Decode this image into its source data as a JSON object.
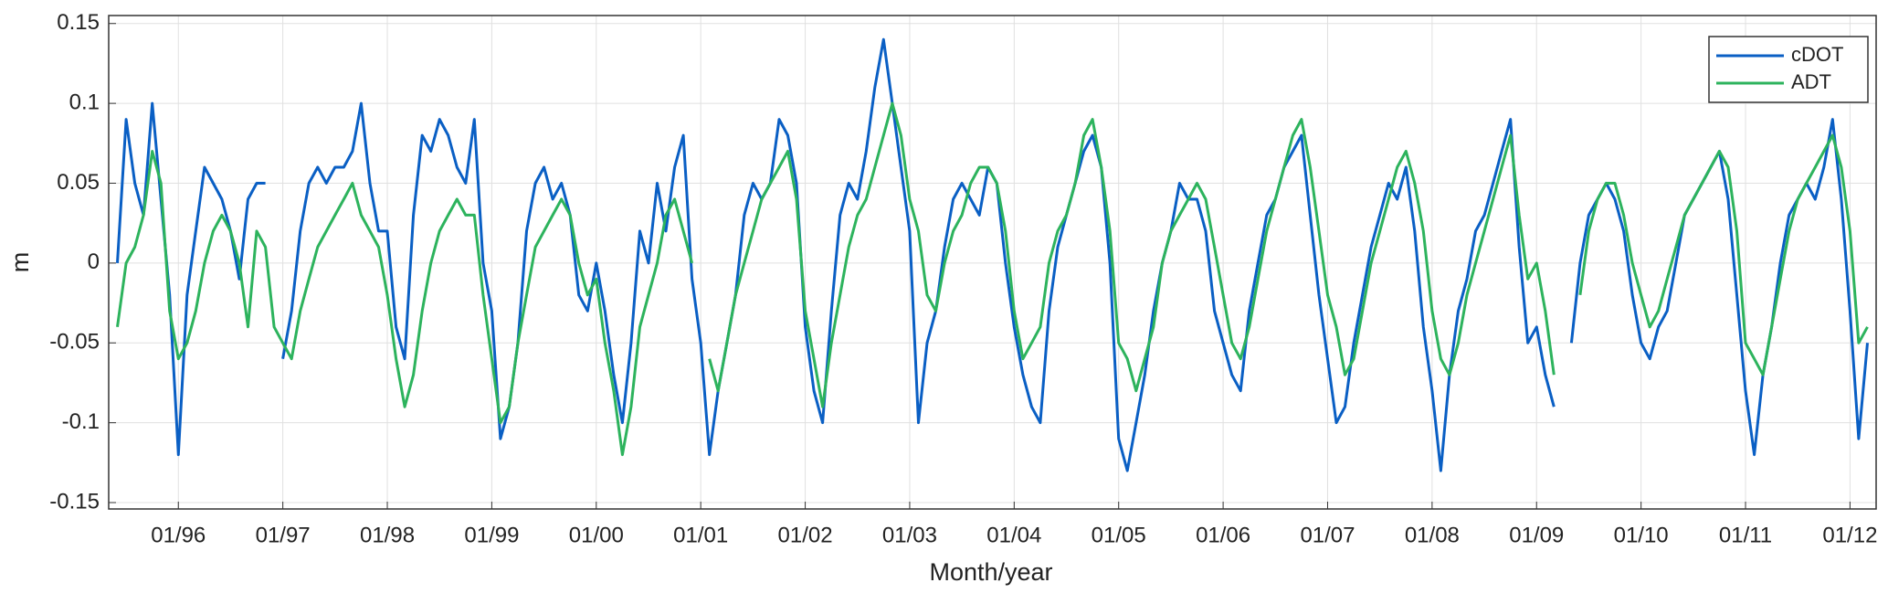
{
  "chart_data": {
    "type": "line",
    "xlabel": "Month/year",
    "ylabel": "m",
    "x": [
      "06/95",
      "07/95",
      "08/95",
      "09/95",
      "10/95",
      "11/95",
      "12/95",
      "01/96",
      "02/96",
      "03/96",
      "04/96",
      "05/96",
      "06/96",
      "07/96",
      "08/96",
      "09/96",
      "10/96",
      "11/96",
      "12/96",
      "01/97",
      "02/97",
      "03/97",
      "04/97",
      "05/97",
      "06/97",
      "07/97",
      "08/97",
      "09/97",
      "10/97",
      "11/97",
      "12/97",
      "01/98",
      "02/98",
      "03/98",
      "04/98",
      "05/98",
      "06/98",
      "07/98",
      "08/98",
      "09/98",
      "10/98",
      "11/98",
      "12/98",
      "01/99",
      "02/99",
      "03/99",
      "04/99",
      "05/99",
      "06/99",
      "07/99",
      "08/99",
      "09/99",
      "10/99",
      "11/99",
      "12/99",
      "01/00",
      "02/00",
      "03/00",
      "04/00",
      "05/00",
      "06/00",
      "07/00",
      "08/00",
      "09/00",
      "10/00",
      "11/00",
      "12/00",
      "01/01",
      "02/01",
      "03/01",
      "04/01",
      "05/01",
      "06/01",
      "07/01",
      "08/01",
      "09/01",
      "10/01",
      "11/01",
      "12/01",
      "01/02",
      "02/02",
      "03/02",
      "04/02",
      "05/02",
      "06/02",
      "07/02",
      "08/02",
      "09/02",
      "10/02",
      "11/02",
      "12/02",
      "01/03",
      "02/03",
      "03/03",
      "04/03",
      "05/03",
      "06/03",
      "07/03",
      "08/03",
      "09/03",
      "10/03",
      "11/03",
      "12/03",
      "01/04",
      "02/04",
      "03/04",
      "04/04",
      "05/04",
      "06/04",
      "07/04",
      "08/04",
      "09/04",
      "10/04",
      "11/04",
      "12/04",
      "01/05",
      "02/05",
      "03/05",
      "04/05",
      "05/05",
      "06/05",
      "07/05",
      "08/05",
      "09/05",
      "10/05",
      "11/05",
      "12/05",
      "01/06",
      "02/06",
      "03/06",
      "04/06",
      "05/06",
      "06/06",
      "07/06",
      "08/06",
      "09/06",
      "10/06",
      "11/06",
      "12/06",
      "01/07",
      "02/07",
      "03/07",
      "04/07",
      "05/07",
      "06/07",
      "07/07",
      "08/07",
      "09/07",
      "10/07",
      "11/07",
      "12/07",
      "01/08",
      "02/08",
      "03/08",
      "04/08",
      "05/08",
      "06/08",
      "07/08",
      "08/08",
      "09/08",
      "10/08",
      "11/08",
      "12/08",
      "01/09",
      "02/09",
      "03/09",
      "04/09",
      "05/09",
      "06/09",
      "07/09",
      "08/09",
      "09/09",
      "10/09",
      "11/09",
      "12/09",
      "01/10",
      "02/10",
      "03/10",
      "04/10",
      "05/10",
      "06/10",
      "07/10",
      "08/10",
      "09/10",
      "10/10",
      "11/10",
      "12/10",
      "01/11",
      "02/11",
      "03/11",
      "04/11",
      "05/11",
      "06/11",
      "07/11",
      "08/11",
      "09/11",
      "10/11",
      "11/11",
      "12/11",
      "01/12",
      "02/12",
      "03/12"
    ],
    "series": [
      {
        "name": "cDOT",
        "color": "#0a5fc4",
        "values": [
          0.0,
          0.09,
          0.05,
          0.03,
          0.1,
          0.04,
          -0.02,
          -0.12,
          -0.02,
          0.02,
          0.06,
          0.05,
          0.04,
          0.02,
          -0.01,
          0.04,
          0.05,
          0.05,
          null,
          -0.06,
          -0.03,
          0.02,
          0.05,
          0.06,
          0.05,
          0.06,
          0.06,
          0.07,
          0.1,
          0.05,
          0.02,
          0.02,
          -0.04,
          -0.06,
          0.03,
          0.08,
          0.07,
          0.09,
          0.08,
          0.06,
          0.05,
          0.09,
          0.0,
          -0.03,
          -0.11,
          -0.09,
          -0.05,
          0.02,
          0.05,
          0.06,
          0.04,
          0.05,
          0.03,
          -0.02,
          -0.03,
          0.0,
          -0.03,
          -0.07,
          -0.1,
          -0.05,
          0.02,
          0.0,
          0.05,
          0.02,
          0.06,
          0.08,
          -0.01,
          -0.05,
          -0.12,
          -0.08,
          -0.05,
          -0.02,
          0.03,
          0.05,
          0.04,
          0.05,
          0.09,
          0.08,
          0.05,
          -0.04,
          -0.08,
          -0.1,
          -0.03,
          0.03,
          0.05,
          0.04,
          0.07,
          0.11,
          0.14,
          0.1,
          0.06,
          0.02,
          -0.1,
          -0.05,
          -0.03,
          0.01,
          0.04,
          0.05,
          0.04,
          0.03,
          0.06,
          0.05,
          0.0,
          -0.04,
          -0.07,
          -0.09,
          -0.1,
          -0.03,
          0.01,
          0.03,
          0.05,
          0.07,
          0.08,
          0.06,
          0.0,
          -0.11,
          -0.13,
          -0.1,
          -0.07,
          -0.03,
          0.0,
          0.02,
          0.05,
          0.04,
          0.04,
          0.02,
          -0.03,
          -0.05,
          -0.07,
          -0.08,
          -0.03,
          0.0,
          0.03,
          0.04,
          0.06,
          0.07,
          0.08,
          0.03,
          -0.02,
          -0.06,
          -0.1,
          -0.09,
          -0.05,
          -0.02,
          0.01,
          0.03,
          0.05,
          0.04,
          0.06,
          0.02,
          -0.04,
          -0.08,
          -0.13,
          -0.07,
          -0.03,
          -0.01,
          0.02,
          0.03,
          0.05,
          0.07,
          0.09,
          0.01,
          -0.05,
          -0.04,
          -0.07,
          -0.09,
          null,
          -0.05,
          0.0,
          0.03,
          0.04,
          0.05,
          0.04,
          0.02,
          -0.02,
          -0.05,
          -0.06,
          -0.04,
          -0.03,
          0.0,
          0.03,
          0.04,
          0.05,
          0.06,
          0.07,
          0.04,
          -0.02,
          -0.08,
          -0.12,
          -0.07,
          -0.04,
          0.0,
          0.03,
          0.04,
          0.05,
          0.04,
          0.06,
          0.09,
          0.04,
          -0.03,
          -0.11,
          -0.05
        ]
      },
      {
        "name": "ADT",
        "color": "#2db35d",
        "values": [
          -0.04,
          0.0,
          0.01,
          0.03,
          0.07,
          0.05,
          -0.03,
          -0.06,
          -0.05,
          -0.03,
          0.0,
          0.02,
          0.03,
          0.02,
          0.0,
          -0.04,
          0.02,
          0.01,
          -0.04,
          -0.05,
          -0.06,
          -0.03,
          -0.01,
          0.01,
          0.02,
          0.03,
          0.04,
          0.05,
          0.03,
          0.02,
          0.01,
          -0.02,
          -0.06,
          -0.09,
          -0.07,
          -0.03,
          0.0,
          0.02,
          0.03,
          0.04,
          0.03,
          0.03,
          -0.02,
          -0.06,
          -0.1,
          -0.09,
          -0.05,
          -0.02,
          0.01,
          0.02,
          0.03,
          0.04,
          0.03,
          0.0,
          -0.02,
          -0.01,
          -0.05,
          -0.08,
          -0.12,
          -0.09,
          -0.04,
          -0.02,
          0.0,
          0.03,
          0.04,
          0.02,
          0.0,
          null,
          -0.06,
          -0.08,
          -0.05,
          -0.02,
          0.0,
          0.02,
          0.04,
          0.05,
          0.06,
          0.07,
          0.04,
          -0.03,
          -0.06,
          -0.09,
          -0.05,
          -0.02,
          0.01,
          0.03,
          0.04,
          0.06,
          0.08,
          0.1,
          0.08,
          0.04,
          0.02,
          -0.02,
          -0.03,
          0.0,
          0.02,
          0.03,
          0.05,
          0.06,
          0.06,
          0.05,
          0.02,
          -0.03,
          -0.06,
          -0.05,
          -0.04,
          0.0,
          0.02,
          0.03,
          0.05,
          0.08,
          0.09,
          0.06,
          0.02,
          -0.05,
          -0.06,
          -0.08,
          -0.06,
          -0.04,
          0.0,
          0.02,
          0.03,
          0.04,
          0.05,
          0.04,
          0.01,
          -0.02,
          -0.05,
          -0.06,
          -0.04,
          -0.01,
          0.02,
          0.04,
          0.06,
          0.08,
          0.09,
          0.06,
          0.02,
          -0.02,
          -0.04,
          -0.07,
          -0.06,
          -0.03,
          0.0,
          0.02,
          0.04,
          0.06,
          0.07,
          0.05,
          0.02,
          -0.03,
          -0.06,
          -0.07,
          -0.05,
          -0.02,
          0.0,
          0.02,
          0.04,
          0.06,
          0.08,
          0.03,
          -0.01,
          0.0,
          -0.03,
          -0.07,
          null,
          null,
          -0.02,
          0.02,
          0.04,
          0.05,
          0.05,
          0.03,
          0.0,
          -0.02,
          -0.04,
          -0.03,
          -0.01,
          0.01,
          0.03,
          0.04,
          0.05,
          0.06,
          0.07,
          0.06,
          0.02,
          -0.05,
          -0.06,
          -0.07,
          -0.04,
          -0.01,
          0.02,
          0.04,
          0.05,
          0.06,
          0.07,
          0.08,
          0.06,
          0.02,
          -0.05,
          -0.04
        ]
      }
    ],
    "xlim": [
      "05/95",
      "04/12"
    ],
    "xticks": [
      "01/96",
      "01/97",
      "01/98",
      "01/99",
      "01/00",
      "01/01",
      "01/02",
      "01/03",
      "01/04",
      "01/05",
      "01/06",
      "01/07",
      "01/08",
      "01/09",
      "01/10",
      "01/11",
      "01/12"
    ],
    "ylim": [
      -0.154,
      0.155
    ],
    "yticks": [
      0.15,
      0.1,
      0.05,
      0,
      -0.05,
      -0.1,
      -0.15
    ],
    "grid": true,
    "legend": "upper right"
  }
}
